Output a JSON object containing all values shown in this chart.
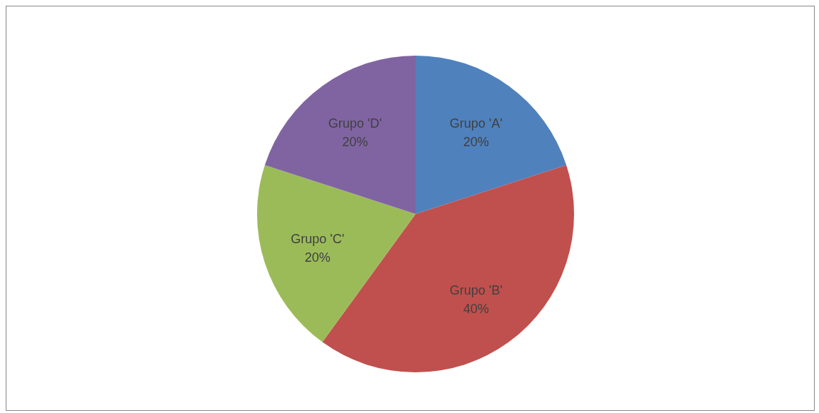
{
  "chart_data": {
    "type": "pie",
    "categories": [
      "Grupo 'A'",
      "Grupo 'B'",
      "Grupo 'C'",
      "Grupo 'D'"
    ],
    "values": [
      20,
      40,
      20,
      20
    ],
    "colors": [
      "#4f81bd",
      "#c0504d",
      "#9bbb59",
      "#8064a2"
    ],
    "value_labels": [
      "20%",
      "40%",
      "20%",
      "20%"
    ],
    "legend": false
  }
}
